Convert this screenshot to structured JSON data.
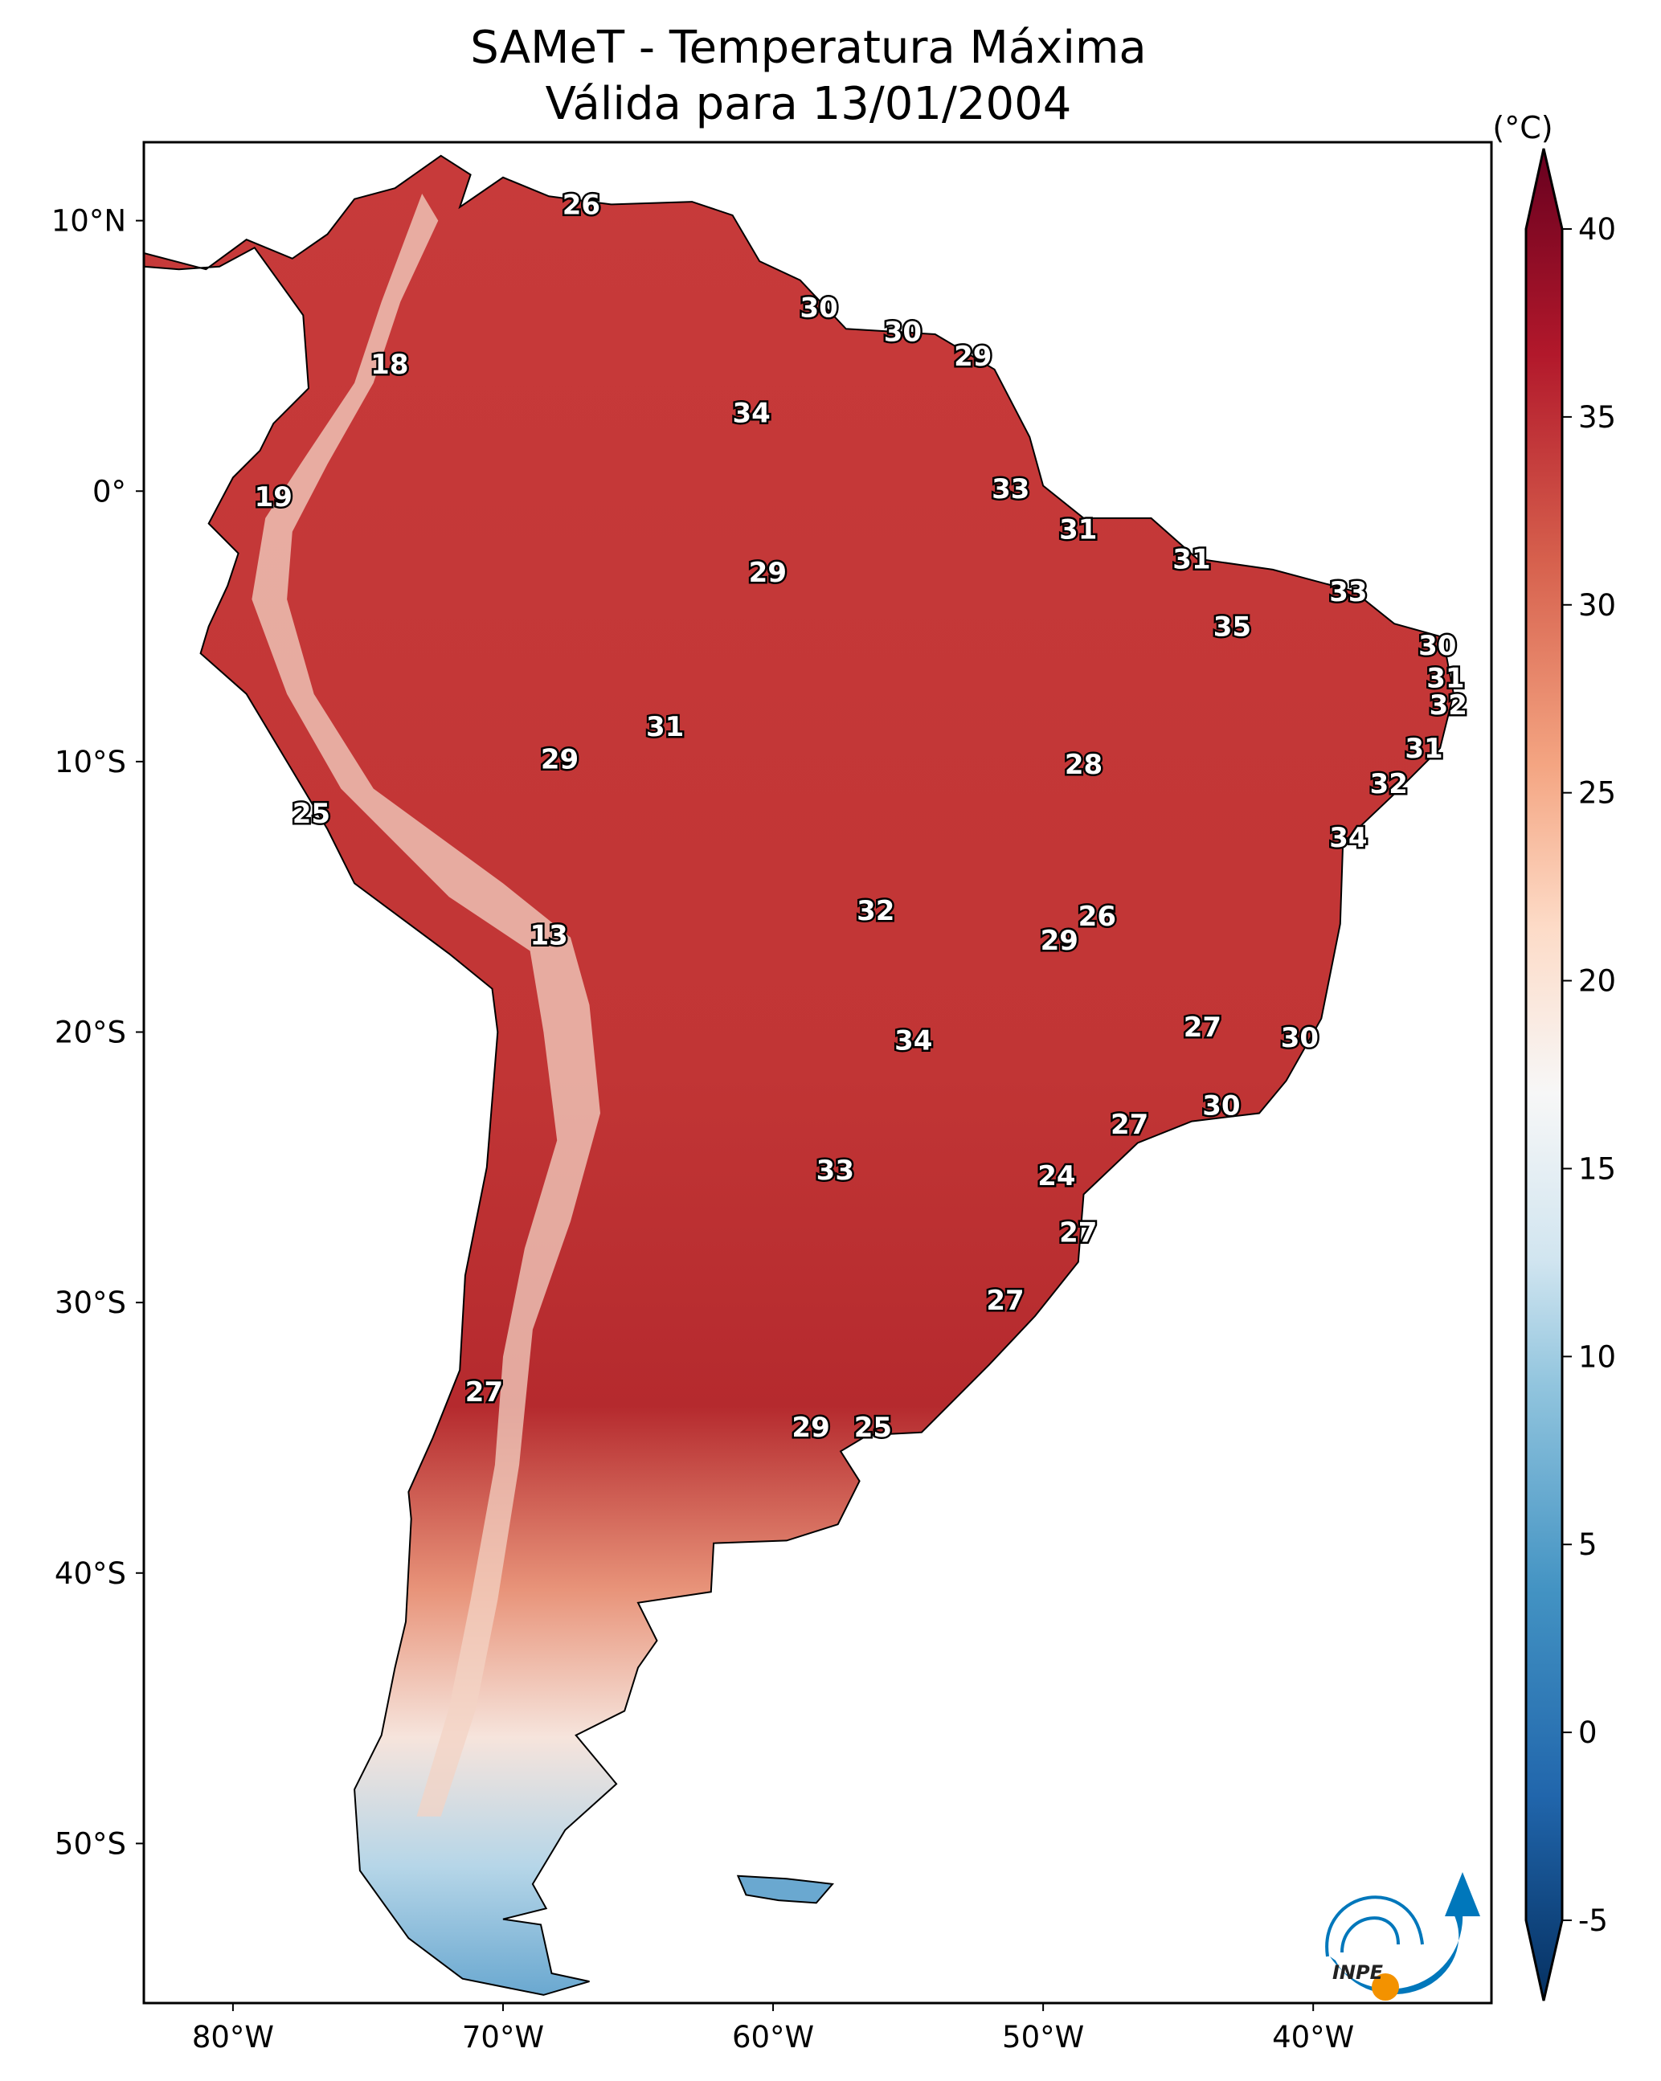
{
  "title_line1": "SAMeT - Temperatura Máxima",
  "title_line2": "Válida para 13/01/2004",
  "colorbar": {
    "unit_label": "(°C)",
    "range": [
      -5,
      40
    ],
    "ticks": [
      "40",
      "35",
      "30",
      "25",
      "20",
      "15",
      "10",
      "5",
      "0",
      "-5"
    ],
    "tick_values": [
      40,
      35,
      30,
      25,
      20,
      15,
      10,
      5,
      0,
      -5
    ],
    "colormap": [
      "#053061",
      "#2166ac",
      "#4393c3",
      "#92c5de",
      "#d1e5f0",
      "#f7f7f7",
      "#fddbc7",
      "#f4a582",
      "#d6604d",
      "#b2182b",
      "#67001f"
    ],
    "extend": "both"
  },
  "map": {
    "extent_lon": [
      -83.3,
      -33.4
    ],
    "extent_lat": [
      -55.9,
      12.9
    ],
    "lat_ticks": [
      {
        "value": 10,
        "label": "10°N"
      },
      {
        "value": 0,
        "label": "0°"
      },
      {
        "value": -10,
        "label": "10°S"
      },
      {
        "value": -20,
        "label": "20°S"
      },
      {
        "value": -30,
        "label": "30°S"
      },
      {
        "value": -40,
        "label": "40°S"
      },
      {
        "value": -50,
        "label": "50°S"
      }
    ],
    "lon_ticks": [
      {
        "value": -80,
        "label": "80°W"
      },
      {
        "value": -70,
        "label": "70°W"
      },
      {
        "value": -60,
        "label": "60°W"
      },
      {
        "value": -50,
        "label": "50°W"
      },
      {
        "value": -40,
        "label": "40°W"
      }
    ],
    "contour_labels": [
      {
        "v": "26",
        "lon": -67.1,
        "lat": 10.6
      },
      {
        "v": "30",
        "lon": -58.3,
        "lat": 6.8
      },
      {
        "v": "30",
        "lon": -55.2,
        "lat": 5.9
      },
      {
        "v": "29",
        "lon": -52.6,
        "lat": 5.0
      },
      {
        "v": "18",
        "lon": -74.2,
        "lat": 4.7
      },
      {
        "v": "34",
        "lon": -60.8,
        "lat": 2.9
      },
      {
        "v": "19",
        "lon": -78.5,
        "lat": -0.2
      },
      {
        "v": "33",
        "lon": -51.2,
        "lat": 0.1
      },
      {
        "v": "31",
        "lon": -48.7,
        "lat": -1.4
      },
      {
        "v": "31",
        "lon": -44.5,
        "lat": -2.5
      },
      {
        "v": "29",
        "lon": -60.2,
        "lat": -3.0
      },
      {
        "v": "33",
        "lon": -38.7,
        "lat": -3.7
      },
      {
        "v": "35",
        "lon": -43.0,
        "lat": -5.0
      },
      {
        "v": "30",
        "lon": -35.4,
        "lat": -5.7
      },
      {
        "v": "31",
        "lon": -35.1,
        "lat": -6.9
      },
      {
        "v": "32",
        "lon": -35.0,
        "lat": -7.9
      },
      {
        "v": "31",
        "lon": -35.9,
        "lat": -9.5
      },
      {
        "v": "31",
        "lon": -64.0,
        "lat": -8.7
      },
      {
        "v": "29",
        "lon": -67.9,
        "lat": -9.9
      },
      {
        "v": "28",
        "lon": -48.5,
        "lat": -10.1
      },
      {
        "v": "32",
        "lon": -37.2,
        "lat": -10.8
      },
      {
        "v": "25",
        "lon": -77.1,
        "lat": -11.9
      },
      {
        "v": "34",
        "lon": -38.7,
        "lat": -12.8
      },
      {
        "v": "32",
        "lon": -56.2,
        "lat": -15.5
      },
      {
        "v": "26",
        "lon": -48.0,
        "lat": -15.7
      },
      {
        "v": "29",
        "lon": -49.4,
        "lat": -16.6
      },
      {
        "v": "13",
        "lon": -68.3,
        "lat": -16.4
      },
      {
        "v": "27",
        "lon": -44.1,
        "lat": -19.8
      },
      {
        "v": "30",
        "lon": -40.5,
        "lat": -20.2
      },
      {
        "v": "34",
        "lon": -54.8,
        "lat": -20.3
      },
      {
        "v": "30",
        "lon": -43.4,
        "lat": -22.7
      },
      {
        "v": "27",
        "lon": -46.8,
        "lat": -23.4
      },
      {
        "v": "33",
        "lon": -57.7,
        "lat": -25.1
      },
      {
        "v": "24",
        "lon": -49.5,
        "lat": -25.3
      },
      {
        "v": "27",
        "lon": -48.7,
        "lat": -27.4
      },
      {
        "v": "27",
        "lon": -51.4,
        "lat": -29.9
      },
      {
        "v": "27",
        "lon": -70.7,
        "lat": -33.3
      },
      {
        "v": "29",
        "lon": -58.6,
        "lat": -34.6
      },
      {
        "v": "25",
        "lon": -56.3,
        "lat": -34.6
      }
    ]
  },
  "logo": {
    "text": "INPE",
    "blue": "#0077bb",
    "orange": "#f39200"
  }
}
